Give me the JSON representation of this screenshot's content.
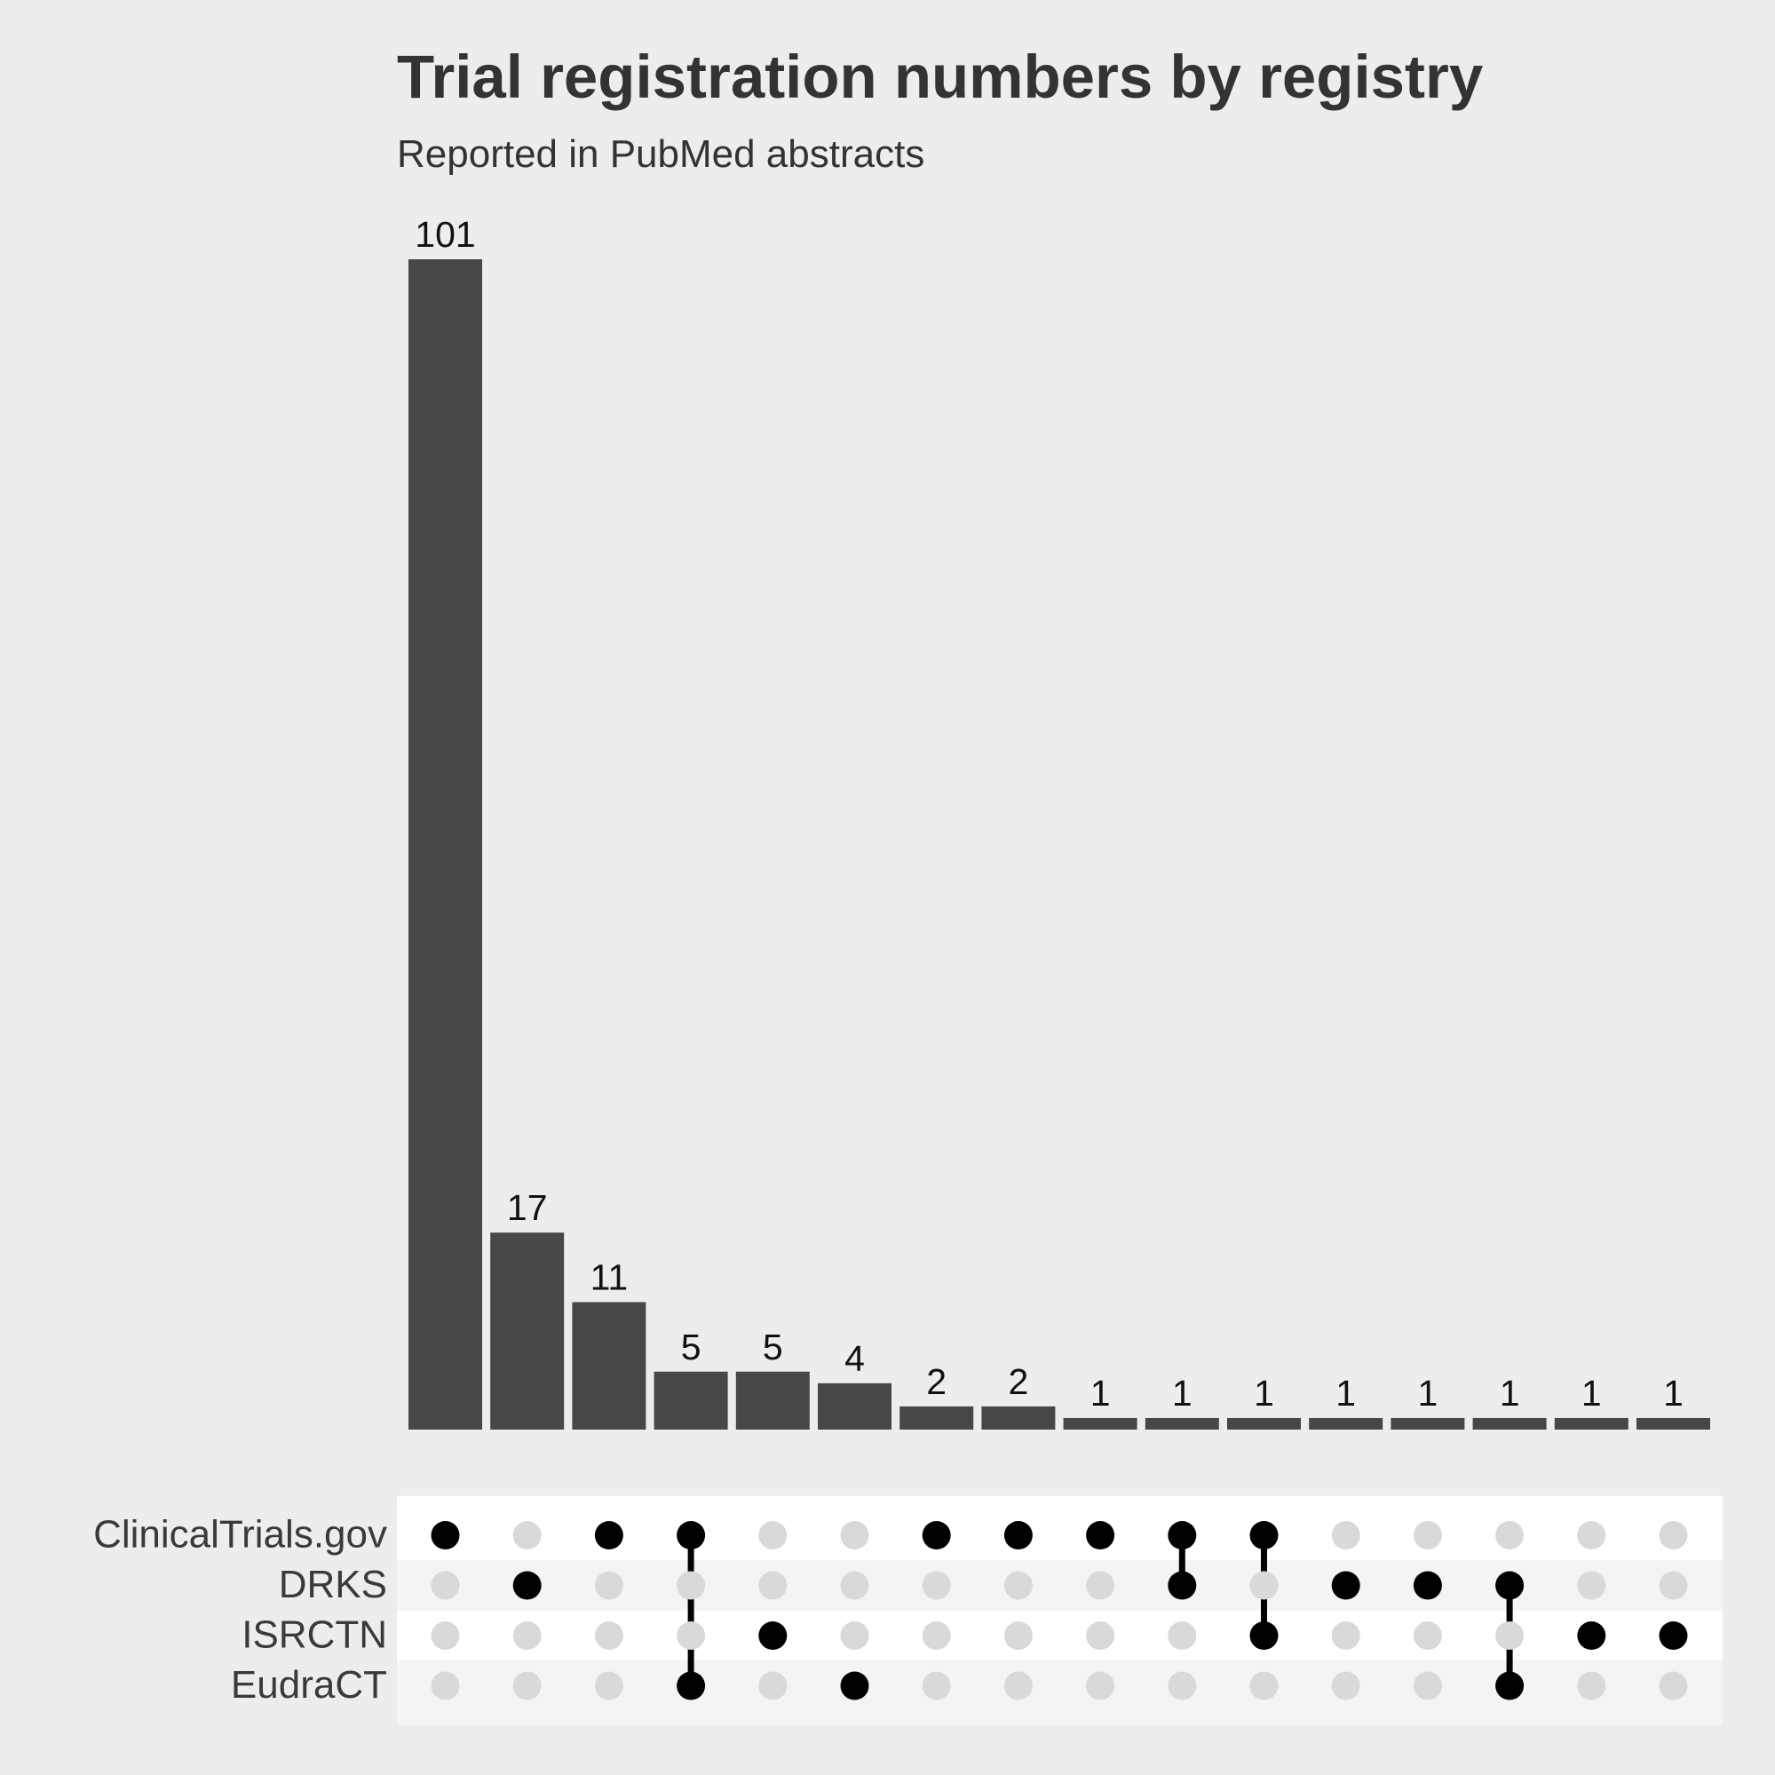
{
  "chart_data": {
    "type": "bar",
    "title": "Trial registration numbers by registry",
    "subtitle": "Reported in PubMed abstracts",
    "sets": [
      "ClinicalTrials.gov",
      "DRKS",
      "ISRCTN",
      "EudraCT"
    ],
    "intersections": [
      {
        "sets": [
          "ClinicalTrials.gov"
        ],
        "value": 101
      },
      {
        "sets": [
          "DRKS"
        ],
        "value": 17
      },
      {
        "sets": [
          "ClinicalTrials.gov"
        ],
        "value": 11
      },
      {
        "sets": [
          "ClinicalTrials.gov",
          "EudraCT"
        ],
        "value": 5
      },
      {
        "sets": [
          "ISRCTN"
        ],
        "value": 5
      },
      {
        "sets": [
          "EudraCT"
        ],
        "value": 4
      },
      {
        "sets": [
          "ClinicalTrials.gov"
        ],
        "value": 2
      },
      {
        "sets": [
          "ClinicalTrials.gov"
        ],
        "value": 2
      },
      {
        "sets": [
          "ClinicalTrials.gov"
        ],
        "value": 1
      },
      {
        "sets": [
          "ClinicalTrials.gov",
          "DRKS"
        ],
        "value": 1
      },
      {
        "sets": [
          "ClinicalTrials.gov",
          "ISRCTN"
        ],
        "value": 1
      },
      {
        "sets": [
          "DRKS"
        ],
        "value": 1
      },
      {
        "sets": [
          "DRKS"
        ],
        "value": 1
      },
      {
        "sets": [
          "DRKS",
          "EudraCT"
        ],
        "value": 1
      },
      {
        "sets": [
          "ISRCTN"
        ],
        "value": 1
      },
      {
        "sets": [
          "ISRCTN"
        ],
        "value": 1
      }
    ],
    "ylim": [
      0,
      101
    ],
    "grid": false,
    "colors": {
      "bar": "#474747",
      "dot_active": "#000000",
      "dot_inactive": "#d9d9d9",
      "matrix_row_a": "#ffffff",
      "matrix_row_b": "#f4f4f4",
      "background": "#ededed"
    }
  }
}
